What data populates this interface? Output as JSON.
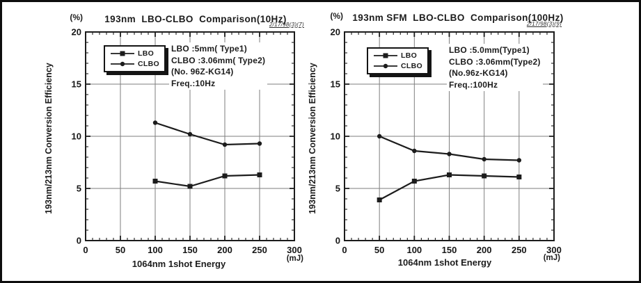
{
  "figure": {
    "background": "#ffffff",
    "ink_color": "#1c1c1c",
    "grid_color": "#7e7e7e",
    "frame_color": "#0d0d0d"
  },
  "chart_data": [
    {
      "type": "line",
      "title": "193nm  LBO-CLBO  Comparison(10Hz)",
      "stamp": "2/17/98(3)(7)",
      "percent_label": "(%)",
      "ylabel": "193nm/213nm Conversion Efficiency",
      "xlabel": "1064nm 1shot Energy",
      "x_unit_label": "(mJ)",
      "xlim": [
        0,
        300
      ],
      "ylim": [
        0,
        20
      ],
      "x_ticks": [
        0,
        50,
        100,
        150,
        200,
        250,
        300
      ],
      "y_ticks": [
        0,
        5,
        10,
        15,
        20
      ],
      "x_minor_step": 10,
      "y_minor_step": 1,
      "grid": true,
      "legend_position": "upper-left-inside",
      "legend": [
        {
          "name": "LBO",
          "marker": "square"
        },
        {
          "name": "CLBO",
          "marker": "circle"
        }
      ],
      "annotation": [
        "LBO :5mm( Type1)",
        "CLBO :3.06mm( Type2)",
        "(No. 96Z-KG14)",
        "Freq.:10Hz"
      ],
      "series": [
        {
          "name": "LBO",
          "marker": "square",
          "x": [
            100,
            150,
            200,
            250
          ],
          "y": [
            5.7,
            5.2,
            6.2,
            6.3
          ]
        },
        {
          "name": "CLBO",
          "marker": "circle",
          "x": [
            100,
            150,
            200,
            250
          ],
          "y": [
            11.3,
            10.2,
            9.2,
            9.3
          ]
        }
      ]
    },
    {
      "type": "line",
      "title": "193nm SFM  LBO-CLBO  Comparison(100Hz)",
      "stamp": "2/17/98(3)(9)",
      "percent_label": "(%)",
      "ylabel": "193nm/213nm Conversion Efficiency",
      "xlabel": "1064nm 1shot Energy",
      "x_unit_label": "(mJ)",
      "xlim": [
        0,
        300
      ],
      "ylim": [
        0,
        20
      ],
      "x_ticks": [
        0,
        50,
        100,
        150,
        200,
        250,
        300
      ],
      "y_ticks": [
        0,
        5,
        10,
        15,
        20
      ],
      "x_minor_step": 10,
      "y_minor_step": 1,
      "grid": true,
      "legend_position": "upper-left-inside",
      "legend": [
        {
          "name": "LBO",
          "marker": "square"
        },
        {
          "name": "CLBO",
          "marker": "circle"
        }
      ],
      "annotation": [
        "LBO :5.0mm(Type1)",
        "CLBO :3.06mm(Type2)",
        "(No.96z-KG14)",
        "Freq.:100Hz"
      ],
      "series": [
        {
          "name": "LBO",
          "marker": "square",
          "x": [
            50,
            100,
            150,
            200,
            250
          ],
          "y": [
            3.9,
            5.7,
            6.3,
            6.2,
            6.1
          ]
        },
        {
          "name": "CLBO",
          "marker": "circle",
          "x": [
            50,
            100,
            150,
            200,
            250
          ],
          "y": [
            10.0,
            8.6,
            8.3,
            7.8,
            7.7
          ]
        }
      ]
    }
  ]
}
